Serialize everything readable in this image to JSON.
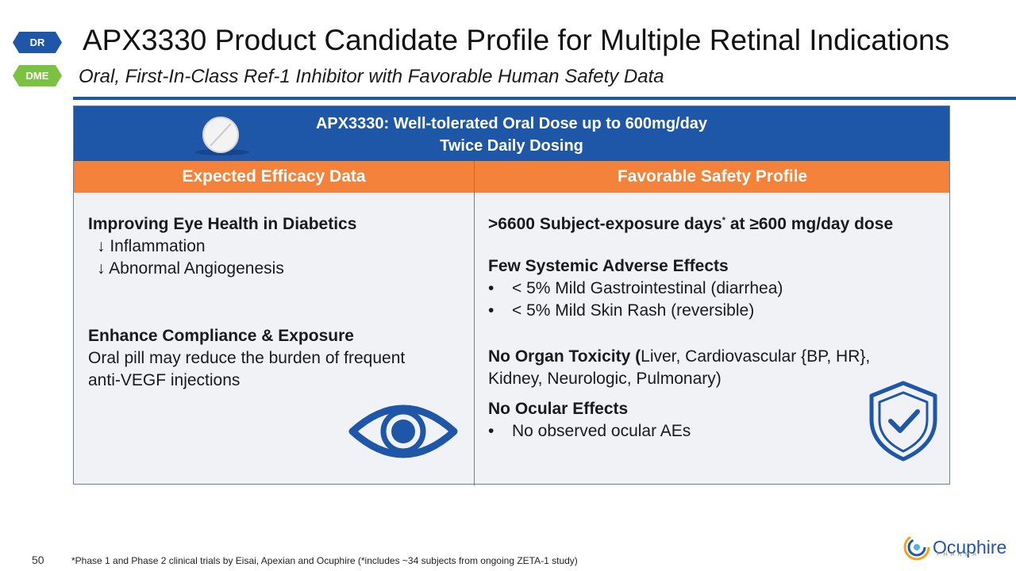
{
  "badges": {
    "dr": "DR",
    "dme": "DME"
  },
  "title": "APX3330 Product Candidate Profile for Multiple Retinal Indications",
  "subtitle": {
    "lead": "Oral,",
    "rest": " First-In-Class Ref-1 Inhibitor with Favorable Human Safety Data"
  },
  "banner": {
    "line1": "APX3330: Well-tolerated Oral Dose up to 600mg/day",
    "line2": "Twice Daily Dosing"
  },
  "columns": {
    "left_header": "Expected Efficacy Data",
    "right_header": "Favorable Safety Profile"
  },
  "efficacy": {
    "h1": "Improving Eye Health in Diabetics",
    "items": [
      "↓ Inflammation",
      "↓ Abnormal Angiogenesis"
    ],
    "h2": "Enhance Compliance & Exposure",
    "body": [
      "Oral pill may reduce the burden of frequent",
      "anti-VEGF injections"
    ]
  },
  "safety": {
    "exposure_a": ">6600 Subject-exposure days",
    "exposure_star": "*",
    "exposure_b": " at ≥600 mg/day dose",
    "h_systemic": "Few Systemic Adverse Effects",
    "bullet_char": "•",
    "systemic": [
      "< 5% Mild Gastrointestinal (diarrhea)",
      "< 5% Mild Skin Rash (reversible)"
    ],
    "h_organ": "No Organ Toxicity (",
    "organ_rest_1": "Liver, Cardiovascular {BP, HR},",
    "organ_rest_2": "Kidney, Neurologic, Pulmonary)",
    "h_ocular": "No Ocular Effects",
    "ocular": [
      "No observed ocular AEs"
    ]
  },
  "footer": {
    "page": "50",
    "note": "*Phase 1 and Phase 2 clinical trials by Eisai, Apexian and Ocuphire (*includes ~34 subjects from ongoing ZETA-1 study)",
    "logo": "Ocuphire",
    "logo_sub": "PHARMA"
  },
  "icons": {
    "pill": "pill-icon",
    "eye": "eye-icon",
    "shield": "shield-check-icon",
    "logo": "ocuphire-logo-icon"
  },
  "colors": {
    "blue": "#1f57a8",
    "orange": "#f4823a",
    "green": "#7cc242",
    "panel": "#f1f2f6"
  }
}
